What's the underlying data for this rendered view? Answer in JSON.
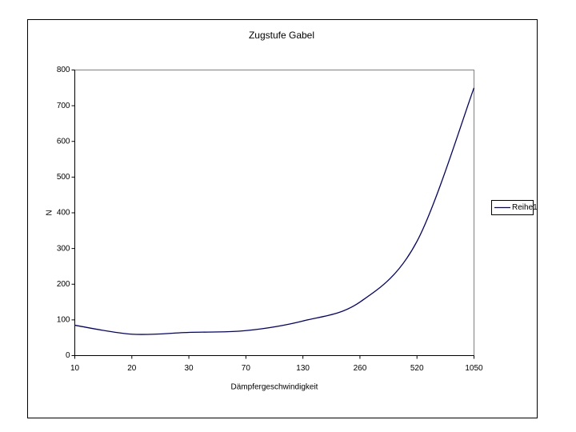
{
  "chart_data": {
    "type": "line",
    "title": "Zugstufe Gabel",
    "x_label": "Dämpfergeschwindigkeit",
    "y_label": "N",
    "categories": [
      "10",
      "20",
      "30",
      "70",
      "130",
      "260",
      "520",
      "1050"
    ],
    "series": [
      {
        "name": "Reihe1",
        "color": "#000080",
        "values": [
          85,
          60,
          65,
          70,
          97,
          150,
          320,
          750
        ]
      }
    ],
    "ylim": [
      0,
      800
    ],
    "yticks": [
      0,
      100,
      200,
      300,
      400,
      500,
      600,
      700,
      800
    ],
    "smooth": true,
    "legend": "right"
  }
}
